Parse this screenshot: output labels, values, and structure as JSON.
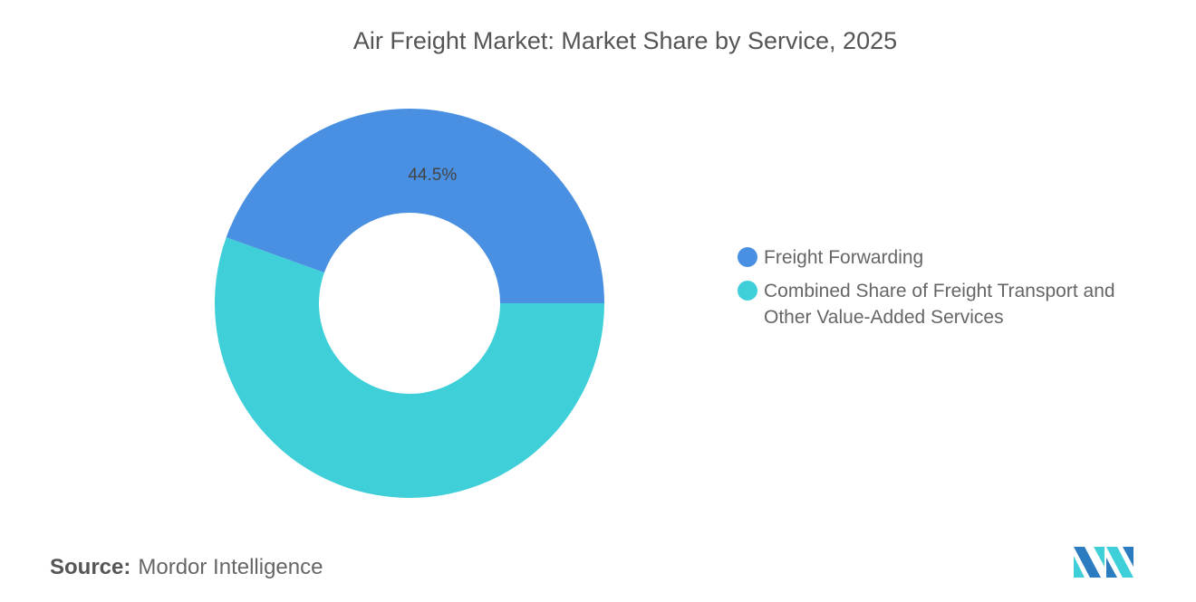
{
  "chart_data": {
    "type": "pie",
    "title": "Air Freight Market: Market Share by Service, 2025",
    "categories": [
      "Freight Forwarding",
      "Combined Share of Freight Transport and Other Value-Added Services"
    ],
    "values": [
      44.5,
      55.5
    ],
    "colors": [
      "#4a90e2",
      "#3ecfd9"
    ],
    "data_labels": [
      "44.5%",
      ""
    ],
    "legend_position": "right",
    "donut": true
  },
  "source": {
    "label": "Source:",
    "value": "Mordor Intelligence"
  },
  "logo": {
    "colors": [
      "#2a7bbf",
      "#3ecfd9"
    ]
  }
}
